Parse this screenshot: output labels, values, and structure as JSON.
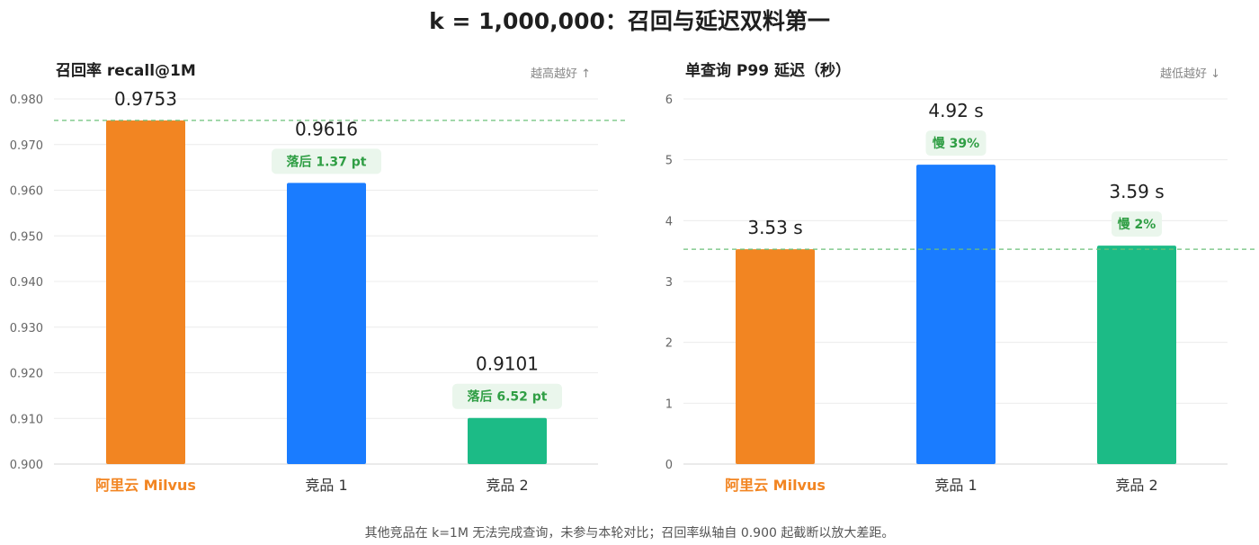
{
  "title": "k = 1,000,000：召回与延迟双料第一",
  "footnote": "其他竞品在 k=1M 无法完成查询，未参与本轮对比；召回率纵轴自 0.900 起截断以放大差距。",
  "colors": {
    "milvus": "#f28522",
    "competitor1": "#1a7cff",
    "competitor2": "#1cbb86",
    "milvus_label": "#f28522",
    "badge_text": "#2f9e44",
    "badge_bg": "#eaf6ec",
    "reference_line": "#6cc07a",
    "grid": "#ececec",
    "axis_text": "#666666"
  },
  "chart_data": [
    {
      "type": "bar",
      "title": "召回率 recall@1M",
      "hint": "越高越好 ↑",
      "categories": [
        "阿里云 Milvus",
        "竞品 1",
        "竞品 2"
      ],
      "values": [
        0.9753,
        0.9616,
        0.9101
      ],
      "value_labels": [
        "0.9753",
        "0.9616",
        "0.9101"
      ],
      "badges": [
        "",
        "落后 1.37 pt",
        "落后 6.52 pt"
      ],
      "ylim": [
        0.9,
        0.98
      ],
      "yticks": [
        "0.900",
        "0.910",
        "0.920",
        "0.930",
        "0.940",
        "0.950",
        "0.960",
        "0.970",
        "0.980"
      ],
      "ytick_values": [
        0.9,
        0.91,
        0.92,
        0.93,
        0.94,
        0.95,
        0.96,
        0.97,
        0.98
      ],
      "reference_line": 0.9753,
      "grid": true
    },
    {
      "type": "bar",
      "title": "单查询 P99 延迟（秒）",
      "hint": "越低越好 ↓",
      "categories": [
        "阿里云 Milvus",
        "竞品 1",
        "竞品 2"
      ],
      "values": [
        3.53,
        4.92,
        3.59
      ],
      "value_labels": [
        "3.53 s",
        "4.92 s",
        "3.59 s"
      ],
      "badges": [
        "",
        "慢 39%",
        "慢 2%"
      ],
      "ylim": [
        0,
        6
      ],
      "yticks": [
        "0",
        "1",
        "2",
        "3",
        "4",
        "5",
        "6"
      ],
      "ytick_values": [
        0,
        1,
        2,
        3,
        4,
        5,
        6
      ],
      "reference_line": 3.53,
      "grid": true
    }
  ]
}
